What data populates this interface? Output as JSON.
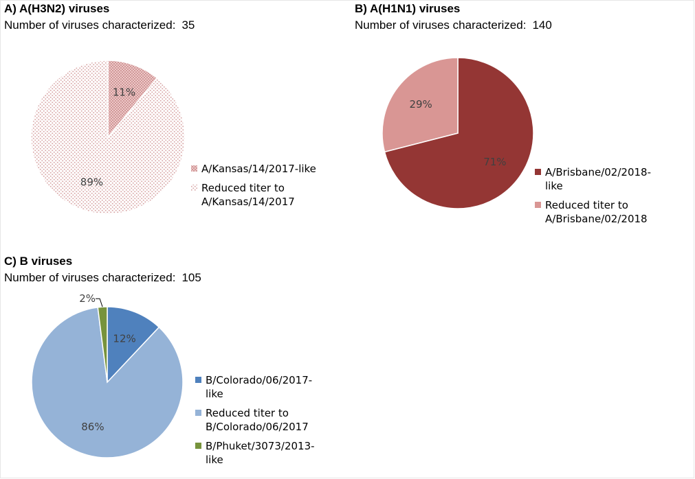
{
  "patterns": {
    "crosshatch": {
      "bg": "#f7d6d6",
      "fg": "#c98f8f"
    },
    "dots": {
      "bg": "#ffffff",
      "fg": "#d9a8a8"
    }
  },
  "chart_data": [
    {
      "type": "pie",
      "title": "A) A(H3N2) viruses",
      "count_label": "Number of viruses characterized:",
      "count": "35",
      "legend_position": "right",
      "start_angle": 0,
      "slices": [
        {
          "label": "A/Kansas/14/2017-like",
          "value": 11,
          "pct_label": "11%",
          "fill": "pattern:crosshatch"
        },
        {
          "label": "Reduced titer to A/Kansas/14/2017",
          "value": 89,
          "pct_label": "89%",
          "fill": "pattern:dots"
        }
      ]
    },
    {
      "type": "pie",
      "title": "B) A(H1N1) viruses",
      "count_label": "Number of viruses characterized:",
      "count": "140",
      "legend_position": "right",
      "start_angle": 0,
      "slices": [
        {
          "label": "A/Brisbane/02/2018-like",
          "value": 71,
          "pct_label": "71%",
          "fill": "#943634"
        },
        {
          "label": "Reduced titer to A/Brisbane/02/2018",
          "value": 29,
          "pct_label": "29%",
          "fill": "#d99694"
        }
      ]
    },
    {
      "type": "pie",
      "title": "C) B viruses",
      "count_label": "Number of viruses characterized:",
      "count": "105",
      "legend_position": "right",
      "start_angle": 0,
      "slices": [
        {
          "label": "B/Colorado/06/2017-like",
          "value": 12,
          "pct_label": "12%",
          "fill": "#4f81bd"
        },
        {
          "label": "Reduced titer to B/Colorado/06/2017",
          "value": 86,
          "pct_label": "86%",
          "fill": "#95b3d7"
        },
        {
          "label": "B/Phuket/3073/2013-like",
          "value": 2,
          "pct_label": "2%",
          "fill": "#77933c"
        }
      ]
    }
  ]
}
